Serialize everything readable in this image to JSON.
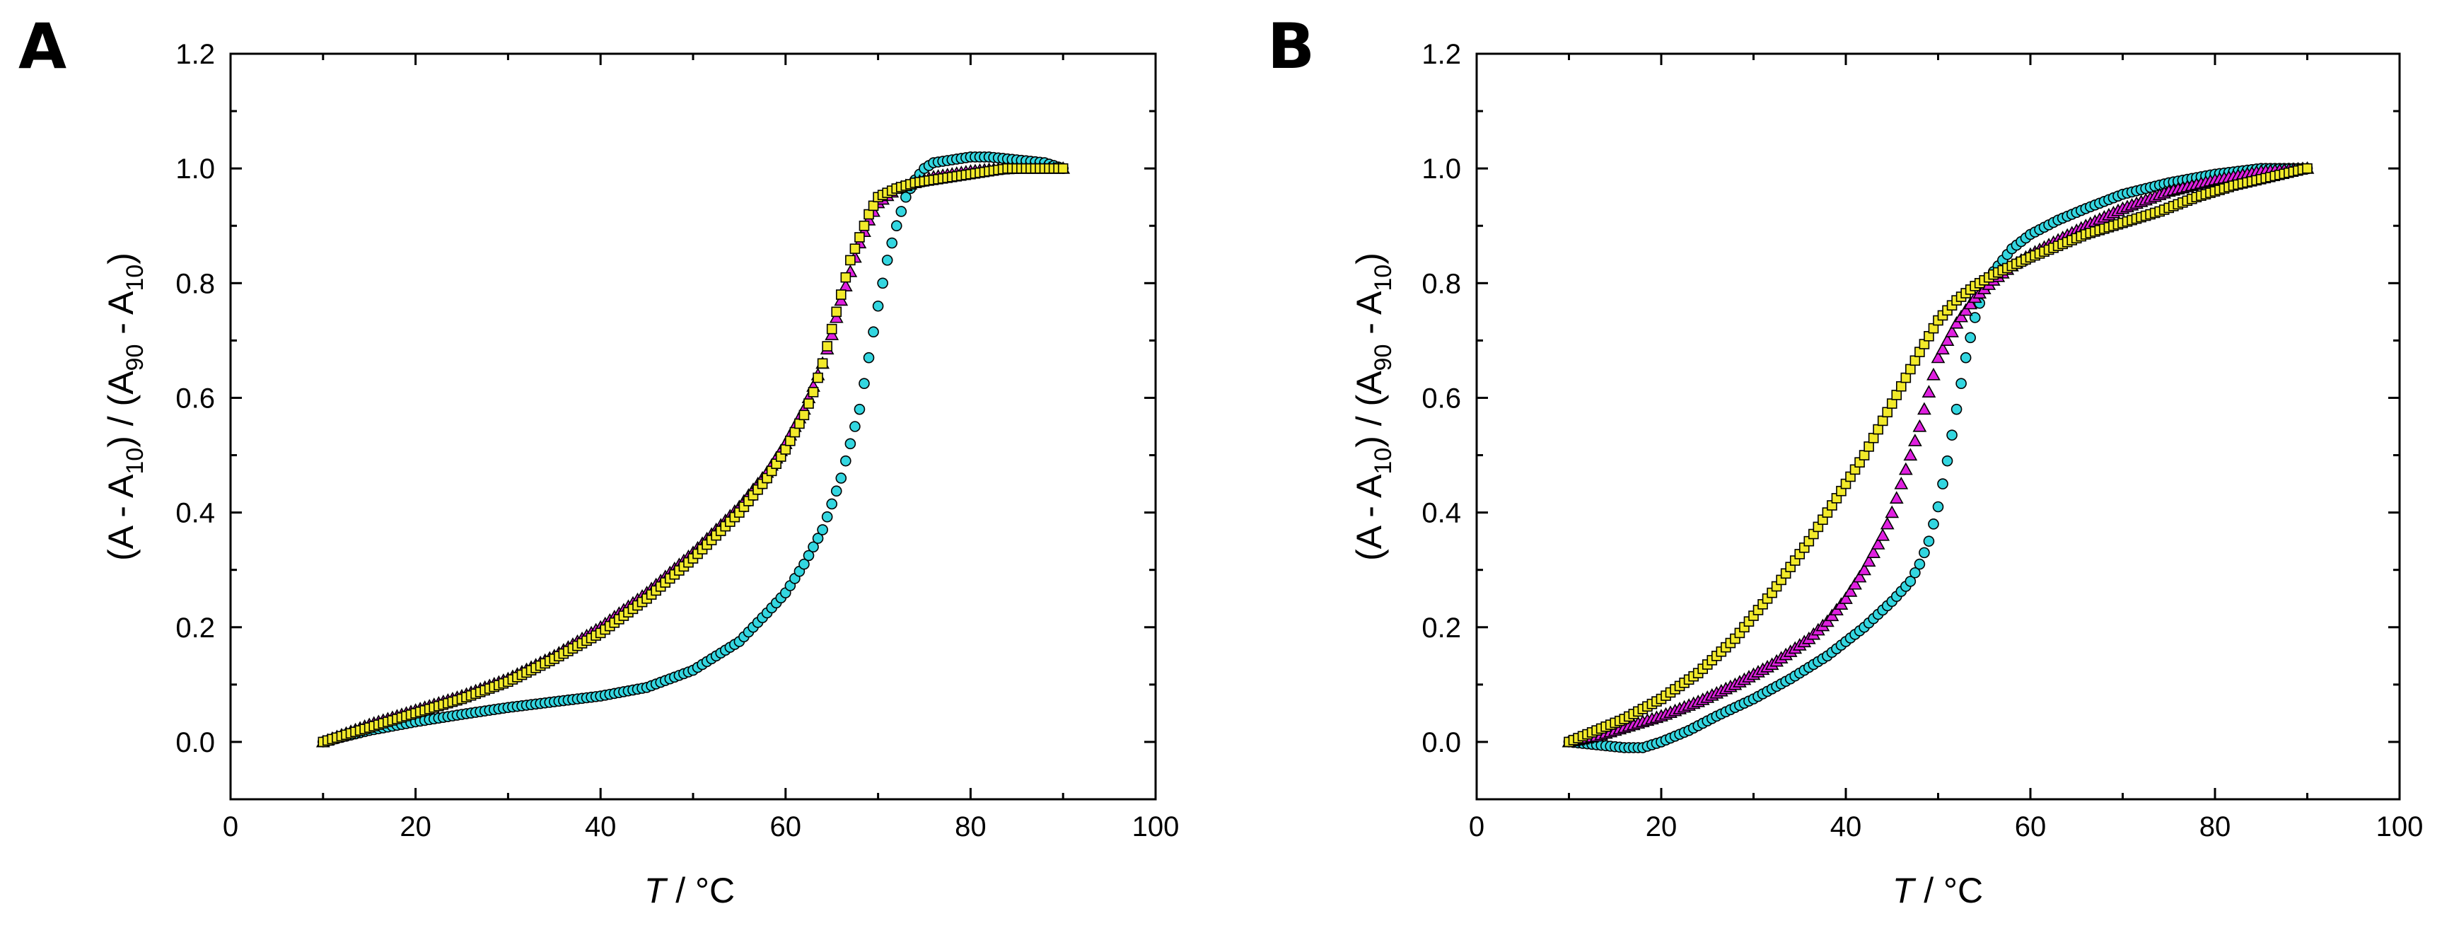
{
  "chart_data": [
    {
      "panel": "A",
      "type": "scatter",
      "xlabel_italic": "T",
      "xlabel_rest": " / °C",
      "ylabel": "(A - A10) / (A90 - A10)",
      "ylabel_parts": [
        "(A - A",
        "10",
        ") / (A",
        "90",
        " - A",
        "10",
        ")"
      ],
      "xlim": [
        0,
        100
      ],
      "ylim": [
        -0.1,
        1.2
      ],
      "xticks": [
        0,
        20,
        40,
        60,
        80,
        100
      ],
      "yticks": [
        0.0,
        0.2,
        0.4,
        0.6,
        0.8,
        1.0,
        1.2
      ],
      "ytick_labels": [
        "0.0",
        "0.2",
        "0.4",
        "0.6",
        "0.8",
        "1.0",
        "1.2"
      ],
      "grid": false,
      "series": [
        {
          "name": "cyan circles",
          "marker": "circle",
          "color": "#33d6e0",
          "x": [
            10,
            15,
            20,
            25,
            30,
            35,
            40,
            45,
            50,
            55,
            58,
            60,
            62,
            64,
            66,
            68,
            69,
            70,
            71,
            72,
            73,
            74,
            75,
            76,
            78,
            80,
            82,
            85,
            88,
            90
          ],
          "y": [
            0.0,
            0.02,
            0.035,
            0.048,
            0.06,
            0.07,
            0.08,
            0.095,
            0.125,
            0.175,
            0.225,
            0.26,
            0.31,
            0.37,
            0.46,
            0.58,
            0.67,
            0.76,
            0.84,
            0.9,
            0.95,
            0.98,
            1.0,
            1.01,
            1.015,
            1.02,
            1.02,
            1.015,
            1.01,
            1.0
          ]
        },
        {
          "name": "magenta triangles",
          "marker": "triangle",
          "color": "#e020e0",
          "x": [
            10,
            15,
            20,
            25,
            30,
            35,
            40,
            45,
            50,
            55,
            58,
            60,
            62,
            64,
            65,
            66,
            67,
            68,
            69,
            70,
            72,
            74,
            76,
            78,
            80,
            82,
            85,
            88,
            90
          ],
          "y": [
            0.0,
            0.03,
            0.055,
            0.08,
            0.11,
            0.15,
            0.2,
            0.26,
            0.33,
            0.41,
            0.47,
            0.52,
            0.58,
            0.66,
            0.71,
            0.77,
            0.82,
            0.87,
            0.91,
            0.94,
            0.965,
            0.975,
            0.985,
            0.99,
            0.995,
            0.998,
            1.0,
            1.0,
            1.0
          ]
        },
        {
          "name": "yellow squares",
          "marker": "square",
          "color": "#f2ea2a",
          "x": [
            10,
            15,
            20,
            25,
            30,
            35,
            40,
            45,
            50,
            55,
            58,
            60,
            62,
            63,
            64,
            65,
            66,
            67,
            68,
            69,
            70,
            72,
            74,
            76,
            78,
            80,
            82,
            84,
            86,
            88,
            90
          ],
          "y": [
            0.0,
            0.025,
            0.05,
            0.075,
            0.105,
            0.145,
            0.19,
            0.25,
            0.32,
            0.4,
            0.46,
            0.51,
            0.57,
            0.61,
            0.66,
            0.72,
            0.78,
            0.84,
            0.88,
            0.92,
            0.95,
            0.965,
            0.975,
            0.98,
            0.985,
            0.99,
            0.995,
            1.0,
            1.0,
            1.0,
            1.0
          ]
        }
      ]
    },
    {
      "panel": "B",
      "type": "scatter",
      "xlabel_italic": "T",
      "xlabel_rest": " / °C",
      "ylabel": "(A - A10) / (A90 - A10)",
      "ylabel_parts": [
        "(A - A",
        "10",
        ") / (A",
        "90",
        " - A",
        "10",
        ")"
      ],
      "xlim": [
        0,
        100
      ],
      "ylim": [
        -0.1,
        1.2
      ],
      "xticks": [
        0,
        20,
        40,
        60,
        80,
        100
      ],
      "yticks": [
        0.0,
        0.2,
        0.4,
        0.6,
        0.8,
        1.0,
        1.2
      ],
      "ytick_labels": [
        "0.0",
        "0.2",
        "0.4",
        "0.6",
        "0.8",
        "1.0",
        "1.2"
      ],
      "grid": false,
      "series": [
        {
          "name": "cyan circles",
          "marker": "circle",
          "color": "#33d6e0",
          "x": [
            10,
            13,
            16,
            18,
            20,
            23,
            26,
            30,
            34,
            38,
            42,
            45,
            47,
            48,
            49,
            50,
            51,
            52,
            53,
            54,
            55,
            56,
            58,
            60,
            63,
            66,
            70,
            75,
            80,
            85,
            90
          ],
          "y": [
            0.0,
            -0.005,
            -0.01,
            -0.01,
            0.0,
            0.02,
            0.045,
            0.075,
            0.11,
            0.15,
            0.2,
            0.245,
            0.28,
            0.31,
            0.35,
            0.41,
            0.49,
            0.58,
            0.67,
            0.74,
            0.79,
            0.82,
            0.86,
            0.885,
            0.91,
            0.93,
            0.955,
            0.975,
            0.99,
            1.0,
            1.0
          ]
        },
        {
          "name": "magenta triangles",
          "marker": "triangle",
          "color": "#e020e0",
          "x": [
            10,
            13,
            16,
            20,
            24,
            28,
            32,
            36,
            38,
            40,
            42,
            44,
            45,
            46,
            47,
            48,
            49,
            50,
            52,
            54,
            56,
            58,
            60,
            63,
            66,
            70,
            75,
            80,
            85,
            90
          ],
          "y": [
            0.0,
            0.01,
            0.025,
            0.045,
            0.07,
            0.1,
            0.135,
            0.18,
            0.21,
            0.25,
            0.3,
            0.36,
            0.4,
            0.45,
            0.5,
            0.55,
            0.61,
            0.67,
            0.73,
            0.775,
            0.805,
            0.83,
            0.85,
            0.875,
            0.9,
            0.93,
            0.96,
            0.98,
            0.995,
            1.0
          ]
        },
        {
          "name": "yellow squares",
          "marker": "square",
          "color": "#f2ea2a",
          "x": [
            10,
            13,
            16,
            20,
            24,
            28,
            32,
            36,
            40,
            42,
            44,
            46,
            48,
            50,
            52,
            54,
            56,
            58,
            60,
            63,
            66,
            70,
            74,
            78,
            82,
            86,
            90
          ],
          "y": [
            0.0,
            0.02,
            0.04,
            0.075,
            0.12,
            0.18,
            0.26,
            0.35,
            0.45,
            0.5,
            0.56,
            0.62,
            0.68,
            0.735,
            0.77,
            0.795,
            0.815,
            0.83,
            0.845,
            0.865,
            0.885,
            0.905,
            0.925,
            0.95,
            0.97,
            0.985,
            1.0
          ]
        }
      ]
    }
  ]
}
